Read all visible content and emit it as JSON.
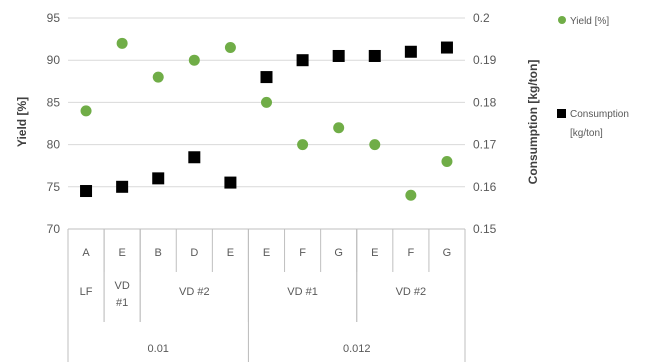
{
  "chart_data": {
    "type": "scatter",
    "title": "",
    "level1": [
      "A",
      "E",
      "B",
      "D",
      "E",
      "E",
      "F",
      "G",
      "E",
      "F",
      "G"
    ],
    "level2": [
      {
        "label": "LF",
        "span": [
          0,
          0
        ]
      },
      {
        "label": "VD\n#1",
        "span": [
          1,
          1
        ]
      },
      {
        "label": "VD #2",
        "span": [
          2,
          4
        ]
      },
      {
        "label": "VD #1",
        "span": [
          5,
          7
        ]
      },
      {
        "label": "VD #2",
        "span": [
          8,
          10
        ]
      }
    ],
    "level3": [
      {
        "label": "0.01",
        "span": [
          0,
          4
        ]
      },
      {
        "label": "0.012",
        "span": [
          5,
          10
        ]
      }
    ],
    "y_left": {
      "label": "Yield [%]",
      "min": 70,
      "max": 95,
      "ticks": [
        70,
        75,
        80,
        85,
        90,
        95
      ]
    },
    "y_right": {
      "label": "Consumption [kg/ton]",
      "min": 0.15,
      "max": 0.2,
      "ticks": [
        "0.15",
        "0.16",
        "0.17",
        "0.18",
        "0.19",
        "0.2"
      ]
    },
    "series": [
      {
        "name": "Yield [%]",
        "axis": "left",
        "marker": "circle",
        "color": "#70AD47",
        "values": [
          84,
          92,
          88,
          90,
          91.5,
          85,
          80,
          82,
          80,
          74,
          78
        ]
      },
      {
        "name": "Consumption [kg/ton]",
        "axis": "right",
        "marker": "square",
        "color": "#000000",
        "values": [
          0.159,
          0.16,
          0.162,
          0.167,
          0.161,
          0.186,
          0.19,
          0.191,
          0.191,
          0.192,
          0.193
        ]
      }
    ],
    "legend": {
      "placement": "right",
      "items": [
        {
          "label": "Yield [%]",
          "lines": [
            "Yield [%]"
          ]
        },
        {
          "label": "Consumption [kg/ton]",
          "lines": [
            "Consumption",
            "[kg/ton]"
          ]
        }
      ]
    },
    "grid": {
      "horizontal": true,
      "vertical": false
    }
  }
}
